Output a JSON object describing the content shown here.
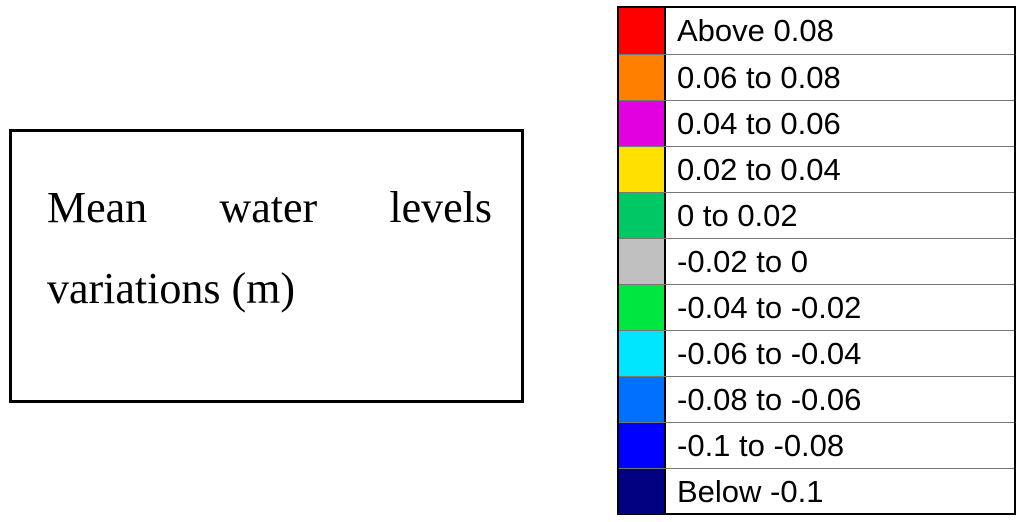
{
  "title": {
    "text": "Mean water levels variations (m)"
  },
  "legend": {
    "items": [
      {
        "label": "Above 0.08",
        "color": "#ff0000"
      },
      {
        "label": "0.06 to 0.08",
        "color": "#ff7f00"
      },
      {
        "label": "0.04 to 0.06",
        "color": "#e000e0"
      },
      {
        "label": "0.02 to 0.04",
        "color": "#ffe000"
      },
      {
        "label": "0 to 0.02",
        "color": "#00c864"
      },
      {
        "label": "-0.02 to 0",
        "color": "#c0c0c0"
      },
      {
        "label": "-0.04 to -0.02",
        "color": "#00e640"
      },
      {
        "label": "-0.06 to -0.04",
        "color": "#00e6ff"
      },
      {
        "label": "-0.08 to -0.06",
        "color": "#0070ff"
      },
      {
        "label": "-0.1 to -0.08",
        "color": "#0000ff"
      },
      {
        "label": "Below -0.1",
        "color": "#000080"
      }
    ]
  }
}
